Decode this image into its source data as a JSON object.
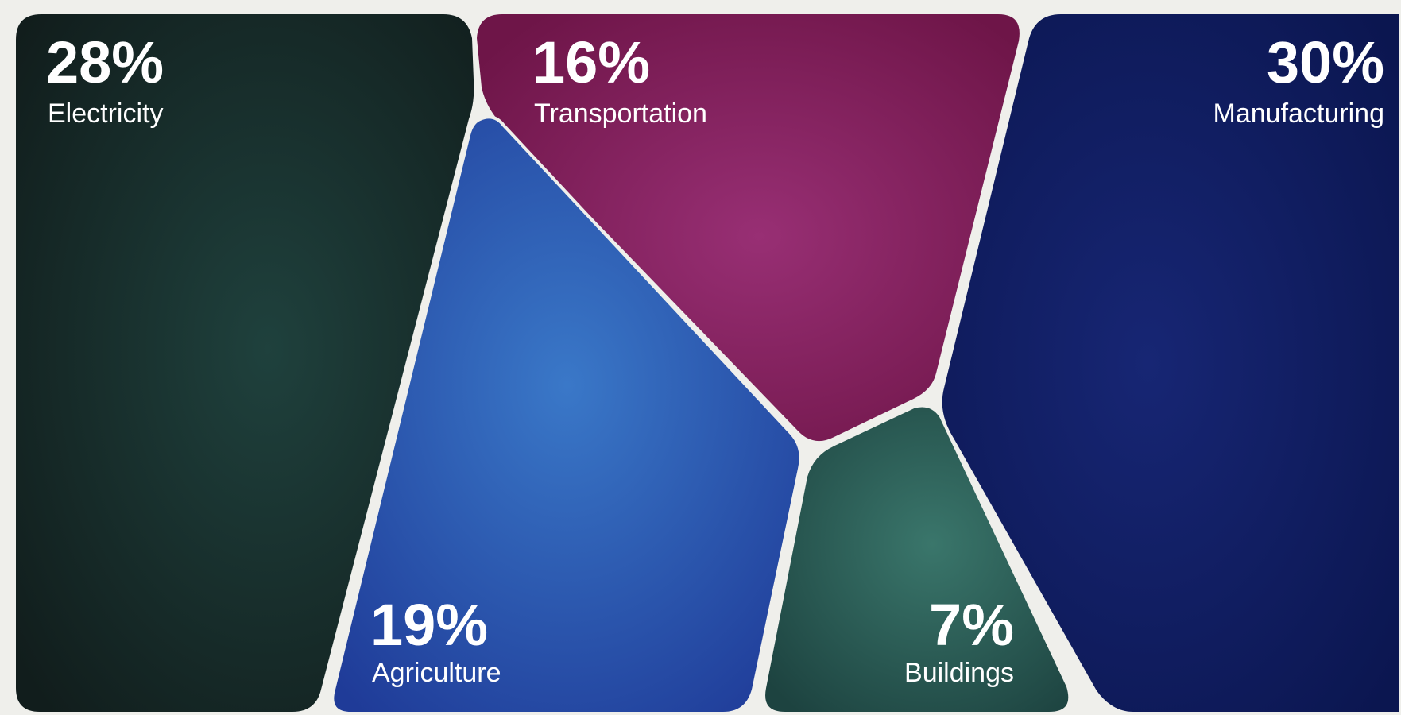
{
  "chart_data": {
    "type": "voronoi-treemap",
    "values": [
      28,
      16,
      30,
      19,
      7
    ],
    "series": [
      {
        "name": "Electricity",
        "value": 28,
        "label": "28%",
        "color": "#162725"
      },
      {
        "name": "Transportation",
        "value": 16,
        "label": "16%",
        "color": "#8a235f"
      },
      {
        "name": "Manufacturing",
        "value": 30,
        "label": "30%",
        "color": "#0f1d63"
      },
      {
        "name": "Agriculture",
        "value": 19,
        "label": "19%",
        "color": "#2b56ad"
      },
      {
        "name": "Buildings",
        "value": 7,
        "label": "7%",
        "color": "#2c5f57"
      }
    ]
  }
}
